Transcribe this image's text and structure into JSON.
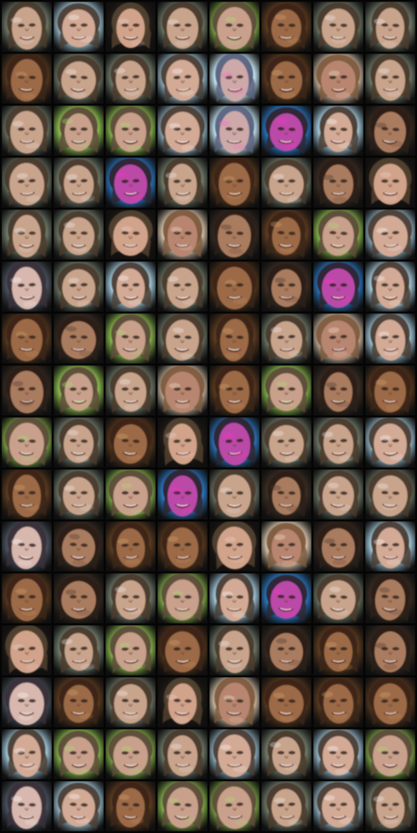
{
  "image": {
    "rows": 16,
    "cols": 8,
    "tile_palette": {
      "a": {
        "bg": "#6f7a6a",
        "hair": "#4a3a2a",
        "skin": "#c9a48c",
        "accent": "#f0f0f0"
      },
      "b": {
        "bg": "#5a3b21",
        "hair": "#3b2414",
        "skin": "#9c6a47",
        "accent": "#d7a26f"
      },
      "c": {
        "bg": "#9ec4d6",
        "hair": "#4b3d32",
        "skin": "#d3aa95",
        "accent": "#ffffff"
      },
      "d": {
        "bg": "#89b94d",
        "hair": "#5d4b3a",
        "skin": "#c8a08b",
        "accent": "#a8e072"
      },
      "e": {
        "bg": "#2d7dc9",
        "hair": "#2f2530",
        "skin": "#bb4aa8",
        "accent": "#ff2fc8"
      },
      "f": {
        "bg": "#1f1a16",
        "hair": "#51402f",
        "skin": "#d1a38a",
        "accent": "#ecd5cc"
      },
      "g": {
        "bg": "#d8c7b0",
        "hair": "#7d5a3c",
        "skin": "#b8866f",
        "accent": "#f3e6d4"
      },
      "h": {
        "bg": "#3a2e24",
        "hair": "#2a1e17",
        "skin": "#aa7b5f",
        "accent": "#4b3a2d"
      },
      "i": {
        "bg": "#c4e4f0",
        "hair": "#59627f",
        "skin": "#cda9a9",
        "accent": "#ff66c9"
      },
      "j": {
        "bg": "#4b5560",
        "hair": "#383038",
        "skin": "#d7b7ae",
        "accent": "#ffffff"
      }
    },
    "tiles": [
      "a",
      "c",
      "f",
      "a",
      "d",
      "b",
      "a",
      "a",
      "b",
      "a",
      "a",
      "c",
      "i",
      "b",
      "g",
      "a",
      "a",
      "d",
      "d",
      "c",
      "i",
      "e",
      "c",
      "h",
      "a",
      "a",
      "e",
      "a",
      "b",
      "a",
      "h",
      "f",
      "a",
      "a",
      "f",
      "g",
      "h",
      "b",
      "d",
      "c",
      "j",
      "a",
      "c",
      "a",
      "b",
      "h",
      "e",
      "c",
      "b",
      "h",
      "d",
      "a",
      "b",
      "a",
      "g",
      "c",
      "h",
      "d",
      "a",
      "g",
      "b",
      "d",
      "h",
      "b",
      "d",
      "a",
      "b",
      "f",
      "e",
      "a",
      "a",
      "c",
      "b",
      "a",
      "d",
      "e",
      "a",
      "h",
      "a",
      "a",
      "j",
      "h",
      "b",
      "b",
      "f",
      "g",
      "h",
      "c",
      "b",
      "h",
      "a",
      "d",
      "c",
      "e",
      "a",
      "h",
      "f",
      "a",
      "d",
      "b",
      "a",
      "h",
      "b",
      "h",
      "j",
      "b",
      "a",
      "f",
      "g",
      "b",
      "b",
      "b",
      "c",
      "d",
      "d",
      "a",
      "c",
      "a",
      "c",
      "d",
      "j",
      "c",
      "b",
      "d",
      "d",
      "a",
      "c",
      "a"
    ]
  }
}
